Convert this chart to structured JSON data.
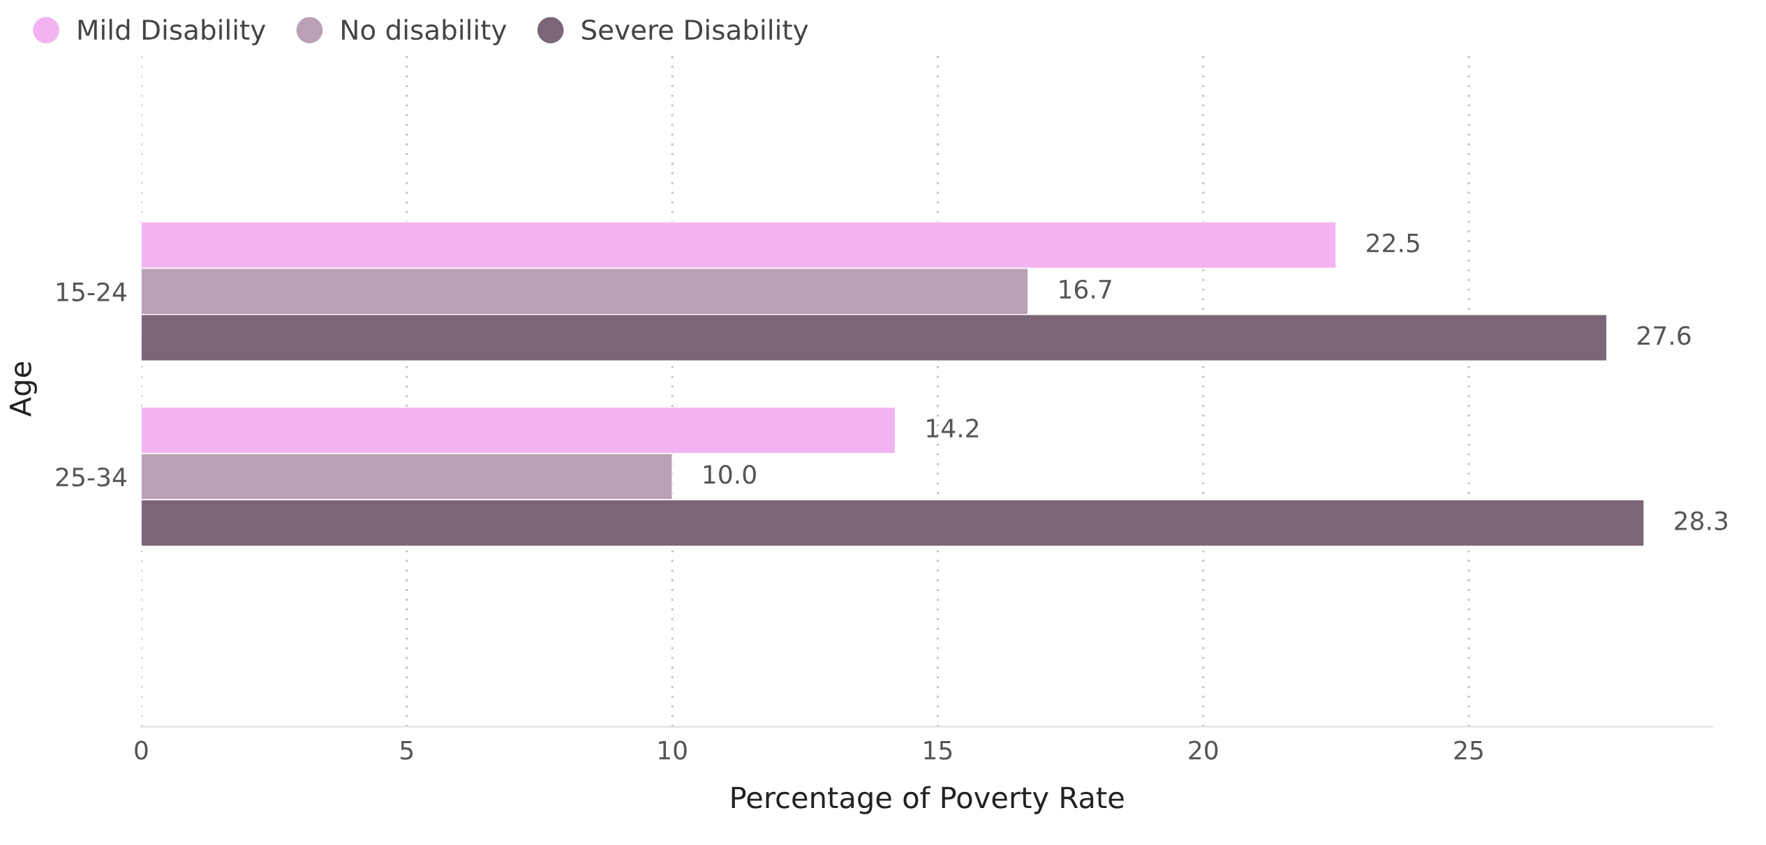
{
  "chart_data": {
    "type": "bar",
    "orientation": "horizontal",
    "xlabel": "Percentage of Poverty Rate",
    "ylabel": "Age",
    "categories": [
      "15-24",
      "25-34"
    ],
    "series": [
      {
        "name": "Mild Disability",
        "color": "#f2b3f3",
        "values": [
          22.5,
          14.2
        ],
        "value_labels": [
          "22.5",
          "14.2"
        ]
      },
      {
        "name": "No disability",
        "color": "#b9a0b4",
        "values": [
          16.7,
          10.0
        ],
        "value_labels": [
          "16.7",
          "10.0"
        ]
      },
      {
        "name": "Severe Disability",
        "color": "#7b6677",
        "values": [
          27.6,
          28.3
        ],
        "value_labels": [
          "27.6",
          "28.3"
        ]
      }
    ],
    "xlim": [
      0,
      29.6
    ],
    "xticks": [
      0,
      5,
      10,
      15,
      20,
      25
    ],
    "grid": "x",
    "legend": "top left"
  }
}
